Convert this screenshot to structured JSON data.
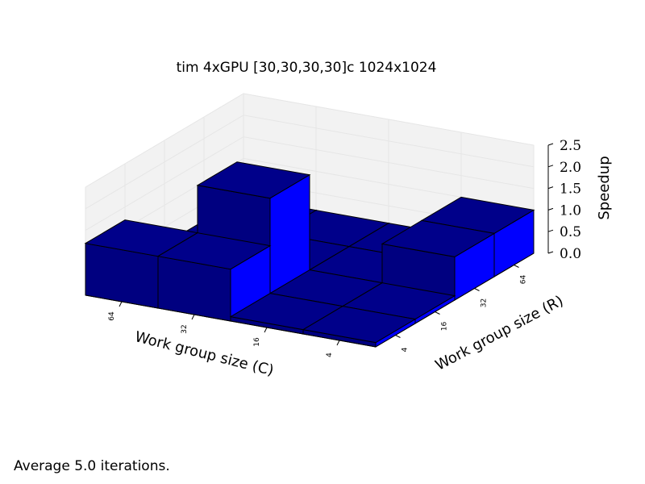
{
  "chart_data": {
    "type": "bar3d",
    "title": "tim 4xGPU [30,30,30,30]c 1024x1024",
    "xlabel": "Work group size (C)",
    "ylabel": "Work group size (R)",
    "zlabel": "Speedup",
    "x_ticks": [
      "64",
      "32",
      "16",
      "4"
    ],
    "y_ticks": [
      "4",
      "16",
      "32",
      "64"
    ],
    "z_ticks": [
      "0.0",
      "0.5",
      "1.0",
      "1.5",
      "2.0",
      "2.5"
    ],
    "zlim": [
      0,
      2.5
    ],
    "bars": [
      {
        "c": "64",
        "r": "4",
        "value": 1.2
      },
      {
        "c": "32",
        "r": "4",
        "value": 1.2
      },
      {
        "c": "16",
        "r": "4",
        "value": 0.1
      },
      {
        "c": "4",
        "r": "4",
        "value": 0.1
      },
      {
        "c": "64",
        "r": "16",
        "value": 0.1
      },
      {
        "c": "32",
        "r": "16",
        "value": 2.3
      },
      {
        "c": "16",
        "r": "16",
        "value": 0.1
      },
      {
        "c": "4",
        "r": "16",
        "value": 0.1
      },
      {
        "c": "64",
        "r": "32",
        "value": 0.1
      },
      {
        "c": "32",
        "r": "32",
        "value": 0.1
      },
      {
        "c": "16",
        "r": "32",
        "value": 0.1
      },
      {
        "c": "4",
        "r": "32",
        "value": 1.0
      },
      {
        "c": "64",
        "r": "64",
        "value": 0.1
      },
      {
        "c": "32",
        "r": "64",
        "value": 0.1
      },
      {
        "c": "16",
        "r": "64",
        "value": 0.1
      },
      {
        "c": "4",
        "r": "64",
        "value": 1.0
      }
    ],
    "colors": {
      "bar_top": "#00008a",
      "bar_front": "#000080",
      "bar_side": "#0000ff",
      "pane": "#f2f2f2",
      "grid": "#e6e6e6"
    }
  },
  "footer": "Average 5.0 iterations."
}
